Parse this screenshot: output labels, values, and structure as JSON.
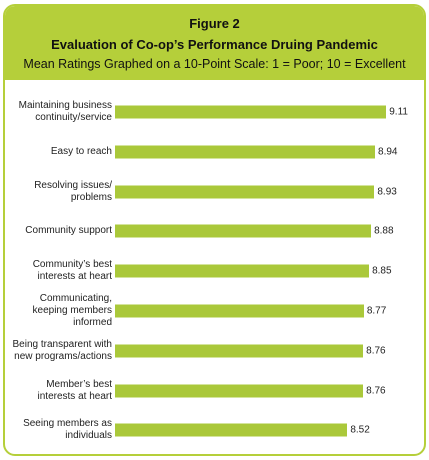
{
  "chart_data": {
    "type": "bar",
    "orientation": "horizontal",
    "label": "Figure 2",
    "title": "Evaluation of Co-op’s Performance Druing Pandemic",
    "subtitle": "Mean Ratings Graphed on a 10-Point Scale: 1 = Poor; 10 = Excellent",
    "categories": [
      "Maintaining business\ncontinuity/service",
      "Easy to reach",
      "Resolving issues/\nproblems",
      "Community support",
      "Community’s best\ninterests at heart",
      "Communicating,\nkeeping members\ninformed",
      "Being transparent with\nnew programs/actions",
      "Member’s best\ninterests at heart",
      "Seeing members as\nindividuals"
    ],
    "values": [
      9.11,
      8.94,
      8.93,
      8.88,
      8.85,
      8.77,
      8.76,
      8.76,
      8.52
    ],
    "color": "#aac83a",
    "xlim": [
      5,
      9.5
    ]
  }
}
